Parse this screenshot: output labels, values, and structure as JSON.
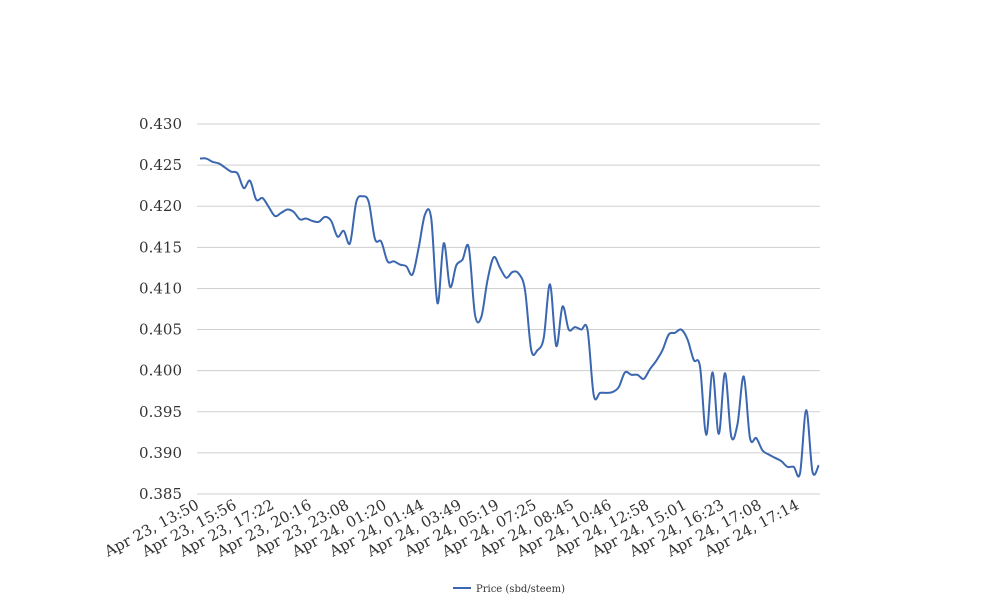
{
  "chart_data": {
    "type": "line",
    "categories": [
      "Apr 23, 13:50",
      null,
      null,
      null,
      null,
      null,
      "Apr 23, 15:56",
      null,
      null,
      null,
      null,
      null,
      "Apr 23, 17:22",
      null,
      null,
      null,
      null,
      null,
      "Apr 23, 20:16",
      null,
      null,
      null,
      null,
      null,
      "Apr 23, 23:08",
      null,
      null,
      null,
      null,
      null,
      "Apr 24, 01:20",
      null,
      null,
      null,
      null,
      null,
      "Apr 24, 01:44",
      null,
      null,
      null,
      null,
      null,
      "Apr 24, 03:49",
      null,
      null,
      null,
      null,
      null,
      "Apr 24, 05:19",
      null,
      null,
      null,
      null,
      null,
      "Apr 24, 07:25",
      null,
      null,
      null,
      null,
      null,
      "Apr 24, 08:45",
      null,
      null,
      null,
      null,
      null,
      "Apr 24, 10:46",
      null,
      null,
      null,
      null,
      null,
      "Apr 24, 12:58",
      null,
      null,
      null,
      null,
      null,
      "Apr 24, 15:01",
      null,
      null,
      null,
      null,
      null,
      "Apr 24, 16:23",
      null,
      null,
      null,
      null,
      null,
      "Apr 24, 17:08",
      null,
      null,
      null,
      null,
      null,
      "Apr 24, 17:14",
      null,
      null,
      null
    ],
    "series": [
      {
        "name": "Price (sbd/steem)",
        "color": "#3a67b0",
        "values": [
          0.4258,
          0.4258,
          0.4254,
          0.4252,
          0.4247,
          0.4242,
          0.424,
          0.4222,
          0.4231,
          0.4208,
          0.421,
          0.4199,
          0.4188,
          0.4192,
          0.4196,
          0.4193,
          0.4184,
          0.4185,
          0.4182,
          0.4181,
          0.4187,
          0.4182,
          0.4163,
          0.417,
          0.4155,
          0.4205,
          0.4212,
          0.4205,
          0.416,
          0.4157,
          0.4133,
          0.4133,
          0.4129,
          0.4127,
          0.4117,
          0.415,
          0.419,
          0.4185,
          0.4082,
          0.4155,
          0.4102,
          0.4128,
          0.4135,
          0.415,
          0.4068,
          0.4065,
          0.411,
          0.4138,
          0.4125,
          0.4113,
          0.412,
          0.4118,
          0.4098,
          0.4025,
          0.4025,
          0.404,
          0.4105,
          0.403,
          0.4078,
          0.405,
          0.4053,
          0.405,
          0.405,
          0.397,
          0.3973,
          0.3973,
          0.3974,
          0.398,
          0.3998,
          0.3995,
          0.3995,
          0.399,
          0.4002,
          0.4012,
          0.4025,
          0.4044,
          0.4046,
          0.405,
          0.4038,
          0.4013,
          0.4005,
          0.3922,
          0.3998,
          0.3923,
          0.3997,
          0.392,
          0.3935,
          0.3993,
          0.3918,
          0.3918,
          0.3903,
          0.3898,
          0.3894,
          0.389,
          0.3883,
          0.3883,
          0.3875,
          0.3952,
          0.3877,
          0.3885
        ]
      }
    ],
    "ylim": [
      0.385,
      0.43
    ],
    "yticks": [
      {
        "value": 0.385,
        "label": "0.385"
      },
      {
        "value": 0.39,
        "label": "0.390"
      },
      {
        "value": 0.395,
        "label": "0.395"
      },
      {
        "value": 0.4,
        "label": "0.400"
      },
      {
        "value": 0.405,
        "label": "0.405"
      },
      {
        "value": 0.41,
        "label": "0.410"
      },
      {
        "value": 0.415,
        "label": "0.415"
      },
      {
        "value": 0.42,
        "label": "0.420"
      },
      {
        "value": 0.425,
        "label": "0.425"
      },
      {
        "value": 0.43,
        "label": "0.430"
      }
    ],
    "grid": true,
    "legend": "bottom"
  }
}
